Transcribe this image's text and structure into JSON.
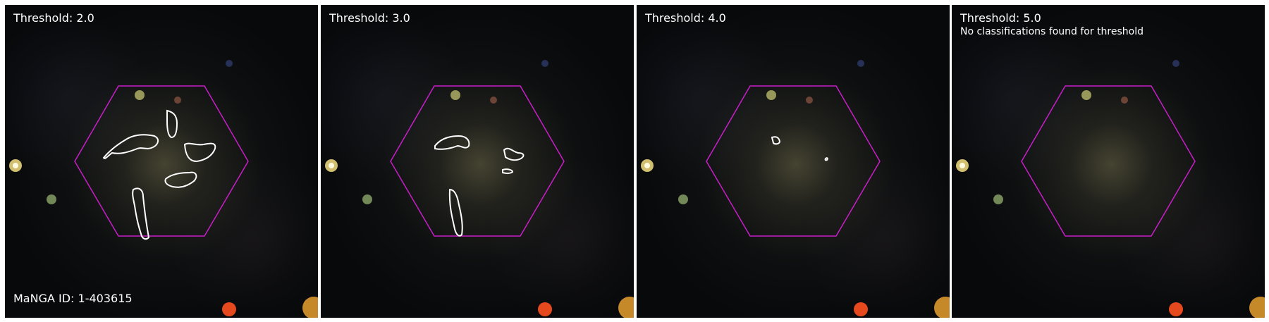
{
  "panels": [
    {
      "threshold_label": "Threshold: 2.0",
      "note": "",
      "footer": "MaNGA ID: 1-403615"
    },
    {
      "threshold_label": "Threshold: 3.0",
      "note": "",
      "footer": ""
    },
    {
      "threshold_label": "Threshold: 4.0",
      "note": "",
      "footer": ""
    },
    {
      "threshold_label": "Threshold: 5.0",
      "note": "No classifications found for threshold",
      "footer": ""
    }
  ],
  "colors": {
    "hexagon": "#c81ec8",
    "contour": "#ffffff",
    "background": "#07090b"
  }
}
